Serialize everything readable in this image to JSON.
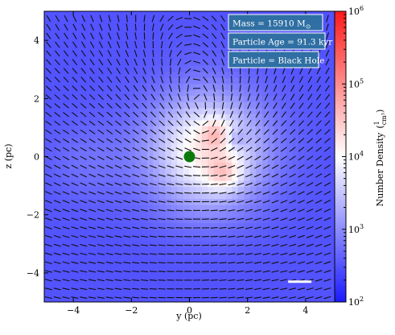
{
  "chart_data": {
    "type": "heatmap",
    "title": "",
    "xlabel": "y  (pc)",
    "ylabel": "z  (pc)",
    "xlim": [
      -5,
      5
    ],
    "ylim": [
      -5,
      5
    ],
    "xticks": [
      -4,
      -2,
      0,
      2,
      4
    ],
    "yticks": [
      -4,
      -2,
      0,
      2,
      4
    ],
    "colorbar": {
      "label": "Number Density",
      "unit_num": "1",
      "unit_den": "cm³",
      "scale": "log",
      "range": [
        100,
        1000000
      ],
      "ticks": [
        {
          "value": 100,
          "base": "10",
          "exp": "2"
        },
        {
          "value": 1000,
          "base": "10",
          "exp": "3"
        },
        {
          "value": 10000,
          "base": "10",
          "exp": "4"
        },
        {
          "value": 100000,
          "base": "10",
          "exp": "5"
        },
        {
          "value": 1000000,
          "base": "10",
          "exp": "6"
        }
      ],
      "colors": [
        "#1a1aff",
        "#ffffff",
        "#ff1a1a"
      ]
    },
    "annotations": [
      {
        "text": "Mass = 15910 M",
        "symbol": "⊙"
      },
      {
        "text": "Particle Age = 91.3 kyr",
        "symbol": ""
      },
      {
        "text": "Particle = Black Hole",
        "symbol": ""
      }
    ],
    "particle": {
      "x": 0,
      "y": 0,
      "color": "#0b7a0b"
    },
    "scale_bar": {
      "x_start": 3.4,
      "x_end": 4.2,
      "y": -4.3
    }
  }
}
